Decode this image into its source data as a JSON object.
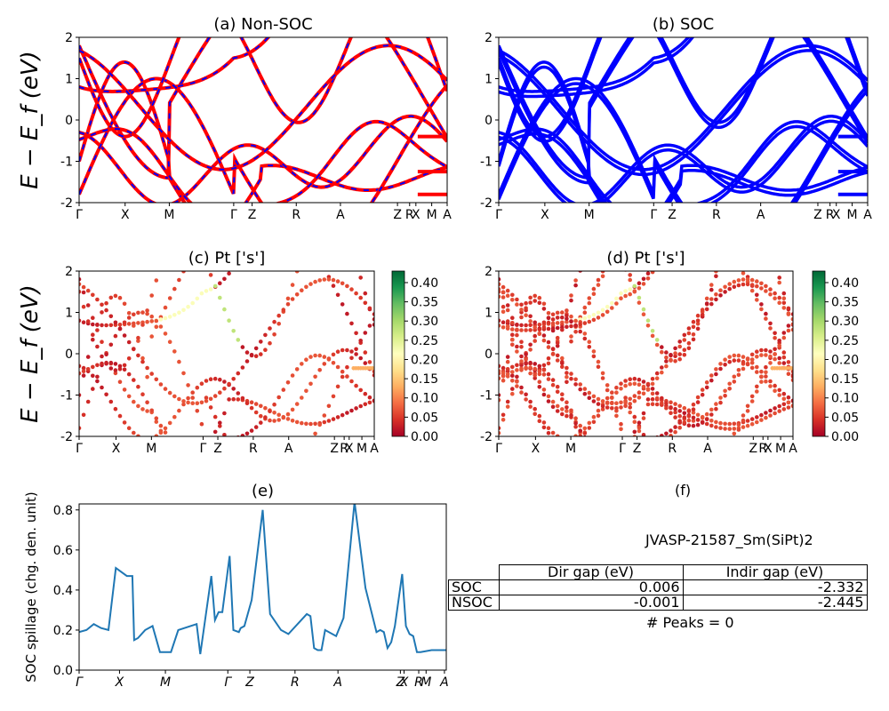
{
  "figure": {
    "ylabel": "E − E_f (eV)",
    "kpoint_labels": [
      "Γ",
      "X",
      "M",
      "Γ",
      "Z",
      "R",
      "A",
      "Z",
      "R",
      "X",
      "M",
      "A"
    ],
    "kpoint_labels_panel_e": [
      "Γ",
      "X",
      "M",
      "Γ",
      "Z",
      "R",
      "A",
      "Z",
      "X",
      "R",
      "M",
      "A"
    ],
    "kpoint_label_separators": [
      "|",
      "|"
    ],
    "colors": {
      "red": "#ff0000",
      "blue": "#0000ff",
      "line": "#1f77b4"
    },
    "colormap": "RdYlGn",
    "colorbar_ticks": [
      "0.00",
      "0.05",
      "0.10",
      "0.15",
      "0.20",
      "0.25",
      "0.30",
      "0.35",
      "0.40"
    ],
    "colorbar_range": [
      0,
      0.43
    ]
  },
  "chart_data": [
    {
      "panel": "a",
      "type": "line",
      "title": "(a) Non-SOC",
      "ylabel": "E − E_f (eV)",
      "ylim": [
        -2,
        2
      ],
      "yticks": [
        -2,
        -1,
        0,
        1,
        2
      ],
      "xticks": [
        "Γ",
        "X",
        "M",
        "Γ",
        "Z",
        "R",
        "A",
        "Z",
        "R",
        "X",
        "M",
        "A"
      ],
      "series_style": "red solid bands overlaid with blue dashed bands (spin up/down)",
      "bands_at_gamma": [
        1.8,
        1.5,
        1.0,
        0.8,
        -0.95,
        -1.0,
        -1.8
      ],
      "flat_bands_near_A": [
        -0.4,
        -1.25,
        -1.8
      ]
    },
    {
      "panel": "b",
      "type": "line",
      "title": "(b) SOC",
      "ylim": [
        -2,
        2
      ],
      "yticks": [
        -2,
        -1,
        0,
        1,
        2
      ],
      "xticks": [
        "Γ",
        "X",
        "M",
        "Γ",
        "Z",
        "R",
        "A",
        "Z",
        "R",
        "X",
        "M",
        "A"
      ],
      "series_style": "blue bands",
      "bands_at_gamma": [
        1.8,
        1.5,
        0.9,
        0.5,
        -0.8,
        -1.0,
        -1.2,
        -1.5,
        -1.9
      ],
      "flat_bands_near_A": [
        -0.35,
        -1.25,
        -1.8
      ]
    },
    {
      "panel": "c",
      "type": "scatter",
      "title": "(c)  Pt ['s']",
      "ylabel": "E − E_f (eV)",
      "ylim": [
        -2,
        2
      ],
      "yticks": [
        -2,
        -1,
        0,
        1,
        2
      ],
      "xticks": [
        "Γ",
        "X",
        "M",
        "Γ",
        "Z",
        "R",
        "A",
        "Z",
        "R",
        "X",
        "M",
        "A"
      ],
      "colorbar_range": [
        0,
        0.43
      ]
    },
    {
      "panel": "d",
      "type": "scatter",
      "title": "(d) Pt ['s']",
      "ylim": [
        -2,
        2
      ],
      "yticks": [
        -2,
        -1,
        0,
        1,
        2
      ],
      "xticks": [
        "Γ",
        "X",
        "M",
        "Γ",
        "Z",
        "R",
        "A",
        "Z",
        "R",
        "X",
        "M",
        "A"
      ],
      "colorbar_range": [
        0,
        0.43
      ]
    },
    {
      "panel": "e",
      "type": "line",
      "title": "(e)",
      "ylabel": "SOC spillage (chg. den. unit)",
      "ylim": [
        0,
        0.83
      ],
      "yticks": [
        "0.0",
        "0.2",
        "0.4",
        "0.6",
        "0.8"
      ],
      "xticks": [
        "Γ",
        "X",
        "M",
        "Γ",
        "Z",
        "R",
        "A",
        "Z",
        "X",
        "R",
        "M",
        "A"
      ],
      "x": [
        0,
        0.02,
        0.04,
        0.06,
        0.08,
        0.1,
        0.13,
        0.145,
        0.15,
        0.16,
        0.18,
        0.2,
        0.22,
        0.25,
        0.27,
        0.32,
        0.33,
        0.36,
        0.37,
        0.38,
        0.39,
        0.41,
        0.42,
        0.435,
        0.44,
        0.45,
        0.47,
        0.5,
        0.52,
        0.55,
        0.57,
        0.62,
        0.63,
        0.64,
        0.65,
        0.66,
        0.67,
        0.7,
        0.72,
        0.75,
        0.78,
        0.81,
        0.82,
        0.83,
        0.84,
        0.85,
        0.86,
        0.88,
        0.89,
        0.9,
        0.91,
        0.92,
        0.93,
        0.96,
        0.98,
        1.0
      ],
      "values": [
        0.19,
        0.2,
        0.23,
        0.21,
        0.2,
        0.51,
        0.47,
        0.47,
        0.15,
        0.16,
        0.2,
        0.22,
        0.09,
        0.09,
        0.2,
        0.23,
        0.08,
        0.47,
        0.25,
        0.29,
        0.29,
        0.57,
        0.2,
        0.19,
        0.21,
        0.22,
        0.35,
        0.8,
        0.28,
        0.2,
        0.18,
        0.28,
        0.27,
        0.11,
        0.1,
        0.1,
        0.2,
        0.17,
        0.26,
        0.84,
        0.41,
        0.19,
        0.2,
        0.19,
        0.11,
        0.14,
        0.22,
        0.48,
        0.22,
        0.18,
        0.17,
        0.09,
        0.09,
        0.1,
        0.1,
        0.1
      ]
    }
  ],
  "panel_f": {
    "title": "(f)",
    "material": "JVASP-21587_Sm(SiPt)2",
    "table": {
      "headers": [
        "Dir gap (eV)",
        "Indir gap (eV)"
      ],
      "rows": [
        {
          "label": "SOC",
          "dir": "0.006",
          "indir": "-2.332"
        },
        {
          "label": "NSOC",
          "dir": "-0.001",
          "indir": "-2.445"
        }
      ]
    },
    "peaks": "# Peaks = 0"
  }
}
